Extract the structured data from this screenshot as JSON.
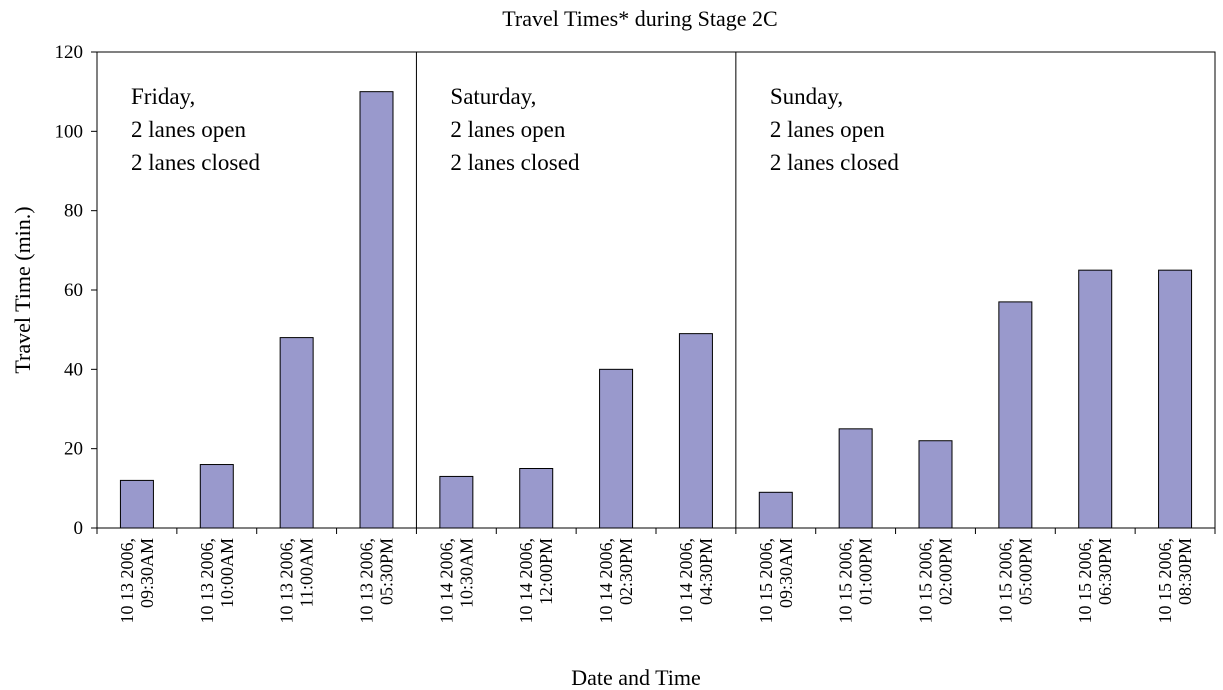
{
  "chart_data": {
    "type": "bar",
    "title": "Travel Times* during Stage 2C",
    "xlabel": "Date and Time",
    "ylabel": "Travel Time (min.)",
    "ylim": [
      0,
      120
    ],
    "yticks": [
      0,
      20,
      40,
      60,
      80,
      100,
      120
    ],
    "grid": false,
    "legend": "none",
    "bar_color": "#9999cc",
    "categories": [
      [
        "10 13 2006,",
        "09:30AM"
      ],
      [
        "10 13 2006,",
        "10:00AM"
      ],
      [
        "10 13 2006,",
        "11:00AM"
      ],
      [
        "10 13 2006,",
        "05:30PM"
      ],
      [
        "10 14 2006,",
        "10:30AM"
      ],
      [
        "10 14 2006,",
        "12:00PM"
      ],
      [
        "10 14 2006,",
        "02:30PM"
      ],
      [
        "10 14 2006,",
        "04:30PM"
      ],
      [
        "10 15 2006,",
        "09:30AM"
      ],
      [
        "10 15 2006,",
        "01:00PM"
      ],
      [
        "10 15 2006,",
        "02:00PM"
      ],
      [
        "10 15 2006,",
        "05:00PM"
      ],
      [
        "10 15 2006,",
        "06:30PM"
      ],
      [
        "10 15 2006,",
        "08:30PM"
      ]
    ],
    "values": [
      12,
      16,
      48,
      110,
      13,
      15,
      40,
      49,
      9,
      25,
      22,
      57,
      65,
      65
    ],
    "sections": [
      {
        "start": 0,
        "end": 3,
        "lines": [
          "Friday,",
          "2 lanes open",
          "2 lanes closed"
        ]
      },
      {
        "start": 4,
        "end": 7,
        "lines": [
          "Saturday,",
          "2 lanes open",
          "2 lanes closed"
        ]
      },
      {
        "start": 8,
        "end": 13,
        "lines": [
          "Sunday,",
          "2 lanes open",
          "2 lanes closed"
        ]
      }
    ]
  }
}
